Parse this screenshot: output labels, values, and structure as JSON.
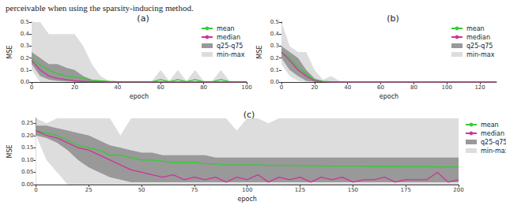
{
  "caption": "perceivable when using the sparsity-inducing method.",
  "chart_data": [
    {
      "type": "line",
      "title": "(a)",
      "x_label": "epoch",
      "y_label": "MSE",
      "legend": "upper right",
      "xlim": [
        0,
        100
      ],
      "xticks": [
        0,
        20,
        40,
        60,
        80,
        100
      ],
      "ylim": [
        0,
        0.5
      ],
      "yticks": [
        {
          "value": 0,
          "label": "0.0"
        },
        {
          "value": 0.1,
          "label": "0.1"
        },
        {
          "value": 0.2,
          "label": "0.2"
        },
        {
          "value": 0.3,
          "label": "0.3"
        },
        {
          "value": 0.4,
          "label": "0.4"
        },
        {
          "value": 0.5,
          "label": "0.5"
        }
      ],
      "x": [
        0,
        4,
        8,
        12,
        16,
        20,
        24,
        28,
        32,
        36,
        40,
        44,
        48,
        52,
        56,
        60,
        64,
        68,
        72,
        76,
        80,
        84,
        88,
        92,
        96,
        100
      ],
      "series": [
        {
          "name": "mean",
          "type": "line",
          "color": "#33cc33",
          "values": [
            0.2,
            0.14,
            0.1,
            0.07,
            0.05,
            0.04,
            0.03,
            0.015,
            0.01,
            0.005,
            0.003,
            0.002,
            0.002,
            0.002,
            0.002,
            0.02,
            0.002,
            0.02,
            0.002,
            0.02,
            0.002,
            0.002,
            0.02,
            0.002,
            0.002,
            0.002
          ]
        },
        {
          "name": "median",
          "type": "line",
          "color": "#cc3399",
          "values": [
            0.18,
            0.1,
            0.05,
            0.03,
            0.02,
            0.01,
            0.005,
            0.003,
            0.002,
            0.001,
            0.001,
            0.001,
            0.001,
            0.001,
            0.001,
            0.001,
            0.001,
            0.001,
            0.001,
            0.001,
            0.001,
            0.001,
            0.001,
            0.001,
            0.001,
            0.001
          ]
        },
        {
          "name": "q25-q75",
          "type": "band",
          "color": "#999999",
          "lower": [
            0.15,
            0.05,
            0.02,
            0.01,
            0.005,
            0.002,
            0.001,
            0,
            0,
            0,
            0,
            0,
            0,
            0,
            0,
            0,
            0,
            0,
            0,
            0,
            0,
            0,
            0,
            0,
            0,
            0
          ],
          "upper": [
            0.25,
            0.2,
            0.15,
            0.15,
            0.12,
            0.1,
            0.05,
            0.02,
            0.005,
            0.003,
            0.002,
            0.002,
            0.002,
            0.002,
            0.002,
            0.002,
            0.002,
            0.002,
            0.002,
            0.002,
            0.002,
            0.002,
            0.002,
            0.002,
            0.002,
            0.002
          ]
        },
        {
          "name": "min-max",
          "type": "band",
          "color": "#dddddd",
          "lower": [
            0.1,
            0,
            0,
            0,
            0,
            0,
            0,
            0,
            0,
            0,
            0,
            0,
            0,
            0,
            0,
            0,
            0,
            0,
            0,
            0,
            0,
            0,
            0,
            0,
            0,
            0
          ],
          "upper": [
            0.5,
            0.5,
            0.4,
            0.4,
            0.4,
            0.4,
            0.3,
            0.15,
            0.05,
            0.01,
            0.01,
            0.01,
            0.01,
            0.01,
            0.01,
            0.1,
            0.01,
            0.1,
            0.01,
            0.1,
            0.01,
            0.01,
            0.1,
            0.01,
            0.01,
            0.01
          ]
        }
      ]
    },
    {
      "type": "line",
      "title": "(b)",
      "x_label": "epoch",
      "y_label": "MSE",
      "legend": "upper right",
      "xlim": [
        0,
        130
      ],
      "xticks": [
        0,
        20,
        40,
        60,
        80,
        100,
        120
      ],
      "ylim": [
        0,
        0.5
      ],
      "yticks": [
        {
          "value": 0,
          "label": "0.0"
        },
        {
          "value": 0.1,
          "label": "0.1"
        },
        {
          "value": 0.2,
          "label": "0.2"
        },
        {
          "value": 0.3,
          "label": "0.3"
        },
        {
          "value": 0.4,
          "label": "0.4"
        },
        {
          "value": 0.5,
          "label": "0.5"
        }
      ],
      "x": [
        0,
        5,
        10,
        15,
        20,
        25,
        30,
        35,
        40,
        45,
        50,
        55,
        60,
        65,
        70,
        75,
        80,
        85,
        90,
        95,
        100,
        105,
        110,
        115,
        120,
        125,
        130
      ],
      "series": [
        {
          "name": "mean",
          "type": "line",
          "color": "#33cc33",
          "values": [
            0.25,
            0.2,
            0.12,
            0.07,
            0.02,
            0.005,
            0.003,
            0.002,
            0.001,
            0.001,
            0.001,
            0.001,
            0.001,
            0.001,
            0.001,
            0.001,
            0.001,
            0.001,
            0.001,
            0.001,
            0.001,
            0.001,
            0.001,
            0.001,
            0.001,
            0.001,
            0.001
          ]
        },
        {
          "name": "median",
          "type": "line",
          "color": "#cc3399",
          "values": [
            0.25,
            0.18,
            0.1,
            0.05,
            0.01,
            0.002,
            0.001,
            0,
            0,
            0,
            0,
            0,
            0,
            0,
            0,
            0,
            0,
            0,
            0,
            0,
            0,
            0,
            0,
            0,
            0,
            0,
            0
          ]
        },
        {
          "name": "q25-q75",
          "type": "band",
          "color": "#999999",
          "lower": [
            0.2,
            0.1,
            0.05,
            0.01,
            0.002,
            0,
            0,
            0,
            0,
            0,
            0,
            0,
            0,
            0,
            0,
            0,
            0,
            0,
            0,
            0,
            0,
            0,
            0,
            0,
            0,
            0,
            0
          ],
          "upper": [
            0.3,
            0.25,
            0.2,
            0.1,
            0.03,
            0.005,
            0.002,
            0.001,
            0.001,
            0.001,
            0.001,
            0.001,
            0.001,
            0.001,
            0.001,
            0.001,
            0.001,
            0.001,
            0.001,
            0.001,
            0.001,
            0.001,
            0.001,
            0.001,
            0.001,
            0.001,
            0.001
          ]
        },
        {
          "name": "min-max",
          "type": "band",
          "color": "#dddddd",
          "lower": [
            0.15,
            0.05,
            0.01,
            0,
            0,
            0,
            0,
            0,
            0,
            0,
            0,
            0,
            0,
            0,
            0,
            0,
            0,
            0,
            0,
            0,
            0,
            0,
            0,
            0,
            0,
            0,
            0
          ],
          "upper": [
            0.5,
            0.3,
            0.25,
            0.25,
            0.1,
            0.02,
            0.05,
            0.01,
            0.005,
            0.005,
            0.005,
            0.005,
            0.005,
            0.005,
            0.005,
            0.005,
            0.005,
            0.005,
            0.005,
            0.005,
            0.005,
            0.005,
            0.005,
            0.005,
            0.005,
            0.005,
            0.005
          ]
        }
      ]
    },
    {
      "type": "line",
      "title": "(c)",
      "x_label": "epoch",
      "y_label": "MSE",
      "legend": "right",
      "xlim": [
        0,
        200
      ],
      "xticks": [
        0,
        25,
        50,
        75,
        100,
        125,
        150,
        175,
        200
      ],
      "ylim": [
        0,
        0.27
      ],
      "yticks": [
        {
          "value": 0,
          "label": "0.00"
        },
        {
          "value": 0.05,
          "label": "0.05"
        },
        {
          "value": 0.1,
          "label": "0.10"
        },
        {
          "value": 0.15,
          "label": "0.15"
        },
        {
          "value": 0.2,
          "label": "0.20"
        },
        {
          "value": 0.25,
          "label": "0.25"
        }
      ],
      "x": [
        0,
        5,
        10,
        15,
        20,
        25,
        30,
        35,
        40,
        45,
        50,
        55,
        60,
        65,
        70,
        75,
        80,
        85,
        90,
        95,
        100,
        105,
        110,
        115,
        120,
        125,
        130,
        135,
        140,
        145,
        150,
        155,
        160,
        165,
        170,
        175,
        180,
        185,
        190,
        195,
        200
      ],
      "series": [
        {
          "name": "mean",
          "type": "line",
          "color": "#33cc33",
          "values": [
            0.22,
            0.21,
            0.2,
            0.18,
            0.16,
            0.15,
            0.14,
            0.12,
            0.12,
            0.11,
            0.1,
            0.1,
            0.095,
            0.09,
            0.09,
            0.09,
            0.085,
            0.085,
            0.08,
            0.08,
            0.08,
            0.08,
            0.078,
            0.078,
            0.078,
            0.076,
            0.076,
            0.076,
            0.075,
            0.075,
            0.075,
            0.075,
            0.074,
            0.074,
            0.074,
            0.073,
            0.073,
            0.073,
            0.072,
            0.072,
            0.072
          ]
        },
        {
          "name": "median",
          "type": "line",
          "color": "#cc3399",
          "values": [
            0.22,
            0.2,
            0.19,
            0.17,
            0.15,
            0.14,
            0.12,
            0.1,
            0.08,
            0.06,
            0.05,
            0.04,
            0.03,
            0.04,
            0.02,
            0.03,
            0.02,
            0.03,
            0.01,
            0.03,
            0.02,
            0.04,
            0.01,
            0.03,
            0.02,
            0.03,
            0.01,
            0.03,
            0.02,
            0.03,
            0.01,
            0.02,
            0.02,
            0.03,
            0.01,
            0.02,
            0.02,
            0.02,
            0.05,
            0.01,
            0.02
          ]
        },
        {
          "name": "q25-q75",
          "type": "band",
          "color": "#999999",
          "lower": [
            0.2,
            0.19,
            0.17,
            0.14,
            0.1,
            0.07,
            0.05,
            0.03,
            0.02,
            0.01,
            0.01,
            0.01,
            0.01,
            0.01,
            0.01,
            0.01,
            0.01,
            0.01,
            0.01,
            0.01,
            0.01,
            0.01,
            0.01,
            0.01,
            0.01,
            0.01,
            0.01,
            0.01,
            0.01,
            0.01,
            0.01,
            0.01,
            0.01,
            0.01,
            0.01,
            0.01,
            0.01,
            0.01,
            0.01,
            0.01,
            0.01
          ],
          "upper": [
            0.24,
            0.24,
            0.23,
            0.22,
            0.21,
            0.2,
            0.18,
            0.16,
            0.15,
            0.14,
            0.13,
            0.13,
            0.12,
            0.12,
            0.12,
            0.12,
            0.12,
            0.11,
            0.11,
            0.11,
            0.11,
            0.11,
            0.11,
            0.11,
            0.11,
            0.11,
            0.11,
            0.11,
            0.11,
            0.11,
            0.11,
            0.11,
            0.11,
            0.11,
            0.11,
            0.11,
            0.11,
            0.11,
            0.11,
            0.11,
            0.11
          ]
        },
        {
          "name": "min-max",
          "type": "band",
          "color": "#dddddd",
          "lower": [
            0.2,
            0.1,
            0.05,
            0,
            0,
            0,
            0,
            0,
            0,
            0,
            0,
            0,
            0,
            0,
            0,
            0,
            0,
            0,
            0,
            0,
            0,
            0,
            0,
            0,
            0,
            0,
            0,
            0,
            0,
            0,
            0,
            0,
            0,
            0,
            0,
            0,
            0,
            0,
            0,
            0,
            0
          ],
          "upper": [
            0.27,
            0.25,
            0.27,
            0.27,
            0.27,
            0.27,
            0.27,
            0.27,
            0.2,
            0.27,
            0.27,
            0.27,
            0.27,
            0.27,
            0.27,
            0.27,
            0.27,
            0.27,
            0.27,
            0.22,
            0.27,
            0.27,
            0.25,
            0.27,
            0.27,
            0.27,
            0.27,
            0.27,
            0.27,
            0.27,
            0.27,
            0.27,
            0.27,
            0.27,
            0.27,
            0.27,
            0.27,
            0.27,
            0.27,
            0.27,
            0.27
          ]
        }
      ]
    }
  ]
}
